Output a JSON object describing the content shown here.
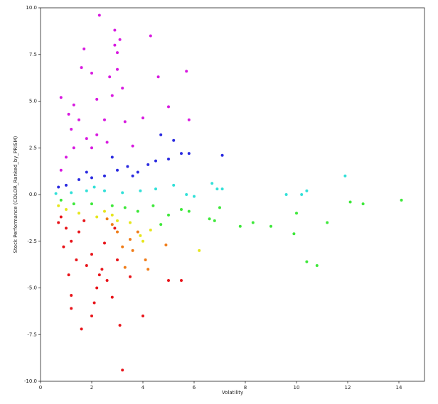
{
  "chart_data": {
    "type": "scatter",
    "xlabel": "Volatility",
    "ylabel": "Stock Performance (COLOR_Ranked_by_PRISM)",
    "xlim": [
      0,
      15
    ],
    "ylim": [
      -10,
      10
    ],
    "xticks": [
      0,
      2,
      4,
      6,
      8,
      10,
      12,
      14
    ],
    "yticks": [
      {
        "value": -10,
        "label": "-10.0"
      },
      -7.5,
      {
        "value": -5,
        "label": "-5.0"
      },
      -2.5,
      {
        "value": 0,
        "label": "0.0"
      },
      2.5,
      {
        "value": 5,
        "label": "5.0"
      },
      7.5,
      {
        "value": 10,
        "label": "10.0"
      }
    ],
    "grid": false,
    "series": [
      {
        "color": "#e8141a",
        "x": [
          0.8,
          1.0,
          1.2,
          0.9,
          1.4,
          1.1,
          1.2,
          1.2,
          1.6,
          2.0,
          2.1,
          2.2,
          2.6,
          2.4,
          1.8,
          2.0,
          3.2,
          3.1,
          2.8,
          1.5,
          2.5,
          3.0,
          5.0,
          5.5,
          4.0,
          0.7,
          1.7,
          2.9,
          3.5,
          2.3
        ],
        "values": [
          -1.2,
          -1.8,
          -2.5,
          -2.8,
          -3.5,
          -4.3,
          -5.4,
          -6.1,
          -7.2,
          -6.5,
          -5.8,
          -5.0,
          -4.6,
          -4.0,
          -3.8,
          -3.2,
          -9.4,
          -7.0,
          -5.5,
          -2.0,
          -2.6,
          -3.5,
          -4.6,
          -4.6,
          -6.5,
          -1.5,
          -1.4,
          -1.8,
          -4.4,
          -4.3
        ]
      },
      {
        "color": "#f07c18",
        "x": [
          3.0,
          3.5,
          3.2,
          4.1,
          3.8,
          2.8,
          4.2,
          3.6,
          2.6,
          4.9,
          3.3
        ],
        "values": [
          -2.0,
          -2.4,
          -2.8,
          -3.5,
          -2.0,
          -1.6,
          -4.0,
          -3.0,
          -1.3,
          -2.7,
          -3.9
        ]
      },
      {
        "color": "#e6e61c",
        "x": [
          1.5,
          2.2,
          2.8,
          3.5,
          3.9,
          4.0,
          4.3,
          6.2,
          1.0,
          0.7,
          3.0,
          2.5
        ],
        "values": [
          -1.0,
          -1.2,
          -1.1,
          -1.5,
          -2.2,
          -2.5,
          -1.9,
          -3.0,
          -0.8,
          -0.6,
          -1.4,
          -0.9
        ]
      },
      {
        "color": "#3ee83a",
        "x": [
          0.8,
          1.3,
          2.0,
          2.8,
          3.3,
          3.8,
          4.4,
          5.0,
          5.5,
          6.6,
          7.0,
          7.8,
          8.3,
          9.0,
          9.9,
          10.0,
          10.4,
          10.8,
          11.2,
          12.1,
          12.6,
          14.1,
          6.8,
          5.8,
          4.7
        ],
        "values": [
          -0.3,
          -0.5,
          -0.5,
          -0.6,
          -0.7,
          -0.9,
          -0.6,
          -1.1,
          -0.8,
          -1.3,
          -0.7,
          -1.7,
          -1.5,
          -1.7,
          -2.1,
          -1.0,
          -3.6,
          -3.8,
          -1.5,
          -0.4,
          -0.5,
          -0.3,
          -1.4,
          -0.9,
          -1.6
        ]
      },
      {
        "color": "#32e0d8",
        "x": [
          0.6,
          1.2,
          1.8,
          2.5,
          3.2,
          3.9,
          4.5,
          5.7,
          6.7,
          6.9,
          7.1,
          9.6,
          10.2,
          10.4,
          11.9,
          5.2,
          2.1,
          6.0
        ],
        "values": [
          0.05,
          0.1,
          0.2,
          0.2,
          0.1,
          0.2,
          0.3,
          0.0,
          0.6,
          0.3,
          0.3,
          0.0,
          0.0,
          0.2,
          1.0,
          0.5,
          0.4,
          -0.1
        ]
      },
      {
        "color": "#2a2ae0",
        "x": [
          1.0,
          1.5,
          2.0,
          2.5,
          3.0,
          3.4,
          3.8,
          4.2,
          4.7,
          5.2,
          5.5,
          5.8,
          7.1,
          5.0,
          4.5,
          2.8,
          3.6,
          1.8,
          0.7
        ],
        "values": [
          0.5,
          0.8,
          0.9,
          1.0,
          1.3,
          1.5,
          1.2,
          1.6,
          3.2,
          2.9,
          2.2,
          2.2,
          2.1,
          1.9,
          1.8,
          2.0,
          1.0,
          1.2,
          0.4
        ]
      },
      {
        "color": "#d81ae0",
        "x": [
          0.8,
          1.0,
          1.3,
          1.2,
          1.5,
          1.8,
          2.0,
          2.2,
          1.7,
          2.0,
          2.3,
          2.9,
          3.1,
          2.9,
          3.0,
          2.7,
          3.0,
          3.2,
          2.8,
          4.3,
          4.6,
          5.7,
          5.8,
          5.0,
          4.0,
          3.3,
          2.5,
          1.1,
          0.8,
          1.3,
          2.2,
          2.6,
          3.6,
          1.6
        ],
        "values": [
          1.3,
          2.0,
          2.5,
          3.5,
          4.0,
          3.0,
          2.5,
          3.2,
          7.8,
          6.5,
          9.6,
          8.8,
          8.3,
          8.0,
          7.6,
          6.3,
          6.7,
          5.7,
          5.3,
          8.5,
          6.3,
          6.6,
          4.0,
          4.7,
          4.1,
          3.9,
          4.0,
          4.3,
          5.2,
          4.8,
          5.1,
          2.8,
          2.6,
          6.8
        ]
      }
    ]
  }
}
